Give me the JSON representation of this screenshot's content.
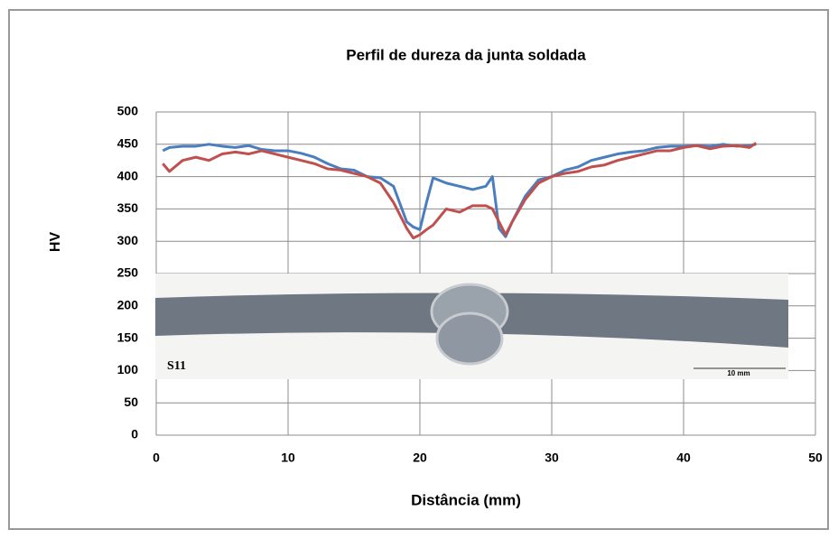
{
  "chart_data": {
    "type": "line",
    "title": "Perfil de dureza da junta soldada",
    "x_label": "Distância (mm)",
    "y_label": "HV",
    "inset_label": "S11",
    "scale_label": "10 mm",
    "x": [
      0.5,
      1,
      2,
      3,
      4,
      5,
      6,
      7,
      8,
      9,
      10,
      11,
      12,
      13,
      14,
      15,
      16,
      17,
      18,
      19,
      19.5,
      20,
      20.5,
      21,
      22,
      23,
      24,
      25,
      25.5,
      26,
      26.5,
      27,
      28,
      29,
      30,
      31,
      32,
      33,
      34,
      35,
      36,
      37,
      38,
      39,
      40,
      41,
      42,
      43,
      44,
      45,
      45.5
    ],
    "series": [
      {
        "color": "#4a7ebf",
        "values": [
          440,
          445,
          447,
          447,
          450,
          447,
          445,
          448,
          442,
          440,
          440,
          436,
          430,
          420,
          412,
          410,
          400,
          398,
          385,
          330,
          322,
          318,
          360,
          398,
          390,
          385,
          380,
          385,
          400,
          320,
          307,
          330,
          370,
          395,
          400,
          410,
          415,
          425,
          430,
          435,
          438,
          440,
          445,
          447,
          447,
          448,
          447,
          450,
          447,
          448,
          450
        ]
      },
      {
        "color": "#c0504d",
        "values": [
          420,
          408,
          425,
          430,
          425,
          435,
          438,
          435,
          440,
          435,
          430,
          425,
          420,
          412,
          410,
          405,
          400,
          390,
          360,
          320,
          305,
          310,
          318,
          325,
          350,
          345,
          355,
          355,
          350,
          330,
          310,
          330,
          365,
          390,
          400,
          405,
          408,
          415,
          418,
          425,
          430,
          435,
          440,
          440,
          445,
          448,
          443,
          447,
          448,
          445,
          452
        ]
      }
    ],
    "xlim": [
      0,
      50
    ],
    "xticks": [
      0,
      10,
      20,
      30,
      40,
      50
    ],
    "ylim": [
      0,
      500
    ],
    "yticks": [
      0,
      50,
      100,
      150,
      200,
      250,
      300,
      350,
      400,
      450,
      500
    ],
    "grid": true
  }
}
